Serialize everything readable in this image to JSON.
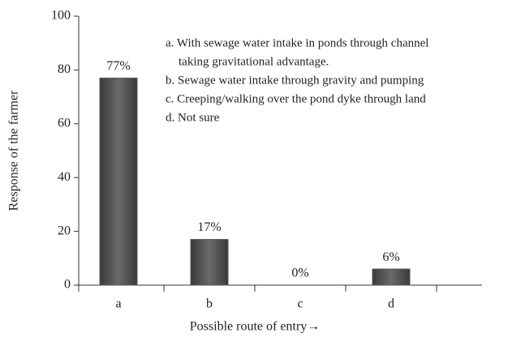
{
  "chart_data": {
    "type": "bar",
    "categories": [
      "a",
      "b",
      "c",
      "d"
    ],
    "values": [
      77,
      17,
      0,
      6
    ],
    "value_labels": [
      "77%",
      "17%",
      "0%",
      "6%"
    ],
    "color": "#555555",
    "xlabel": "Possible route of entry→",
    "ylabel": "Response of the farmer",
    "ylim": [
      0,
      100
    ],
    "yticks": [
      0,
      20,
      40,
      60,
      80,
      100
    ],
    "annotations": [
      "a.  With sewage water intake in ponds through channel",
      "taking gravitational advantage.",
      "b.  Sewage water intake through gravity and pumping",
      "c.  Creeping/walking over the pond dyke through land",
      "d.  Not sure"
    ]
  }
}
